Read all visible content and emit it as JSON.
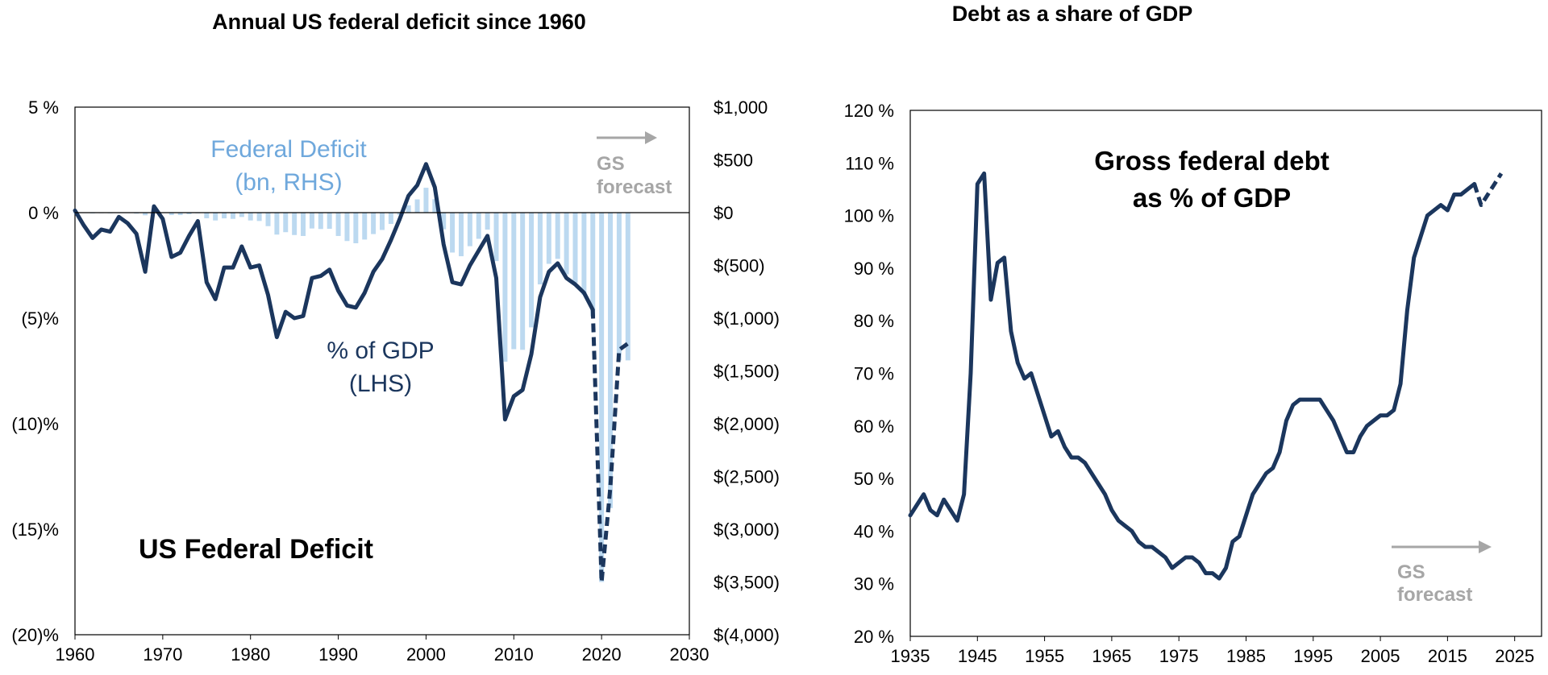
{
  "chart_data": [
    {
      "type": "line+bar",
      "title": "Annual US federal deficit since 1960",
      "inner_title": "US Federal Deficit",
      "xlim": [
        1960,
        2030
      ],
      "x_ticks": [
        "1960",
        "1970",
        "1980",
        "1990",
        "2000",
        "2010",
        "2020",
        "2030"
      ],
      "y_left_lim": [
        -20,
        5
      ],
      "y_left_ticks": [
        {
          "v": 5,
          "label": "5 %"
        },
        {
          "v": 0,
          "label": "0 %"
        },
        {
          "v": -5,
          "label": "(5)%"
        },
        {
          "v": -10,
          "label": "(10)%"
        },
        {
          "v": -15,
          "label": "(15)%"
        },
        {
          "v": -20,
          "label": "(20)%"
        }
      ],
      "y_right_lim": [
        -4000,
        1000
      ],
      "y_right_ticks": [
        {
          "v": 1000,
          "label": "$1,000"
        },
        {
          "v": 500,
          "label": "$500"
        },
        {
          "v": 0,
          "label": "$0"
        },
        {
          "v": -500,
          "label": "$(500)"
        },
        {
          "v": -1000,
          "label": "$(1,000)"
        },
        {
          "v": -1500,
          "label": "$(1,500)"
        },
        {
          "v": -2000,
          "label": "$(2,000)"
        },
        {
          "v": -2500,
          "label": "$(2,500)"
        },
        {
          "v": -3000,
          "label": "$(3,000)"
        },
        {
          "v": -3500,
          "label": "$(3,500)"
        },
        {
          "v": -4000,
          "label": "$(4,000)"
        }
      ],
      "bar_series": {
        "name": "Federal Deficit (bn, RHS)",
        "label_lines": [
          "Federal Deficit",
          "(bn, RHS)"
        ],
        "color": "#bcd9f0",
        "x": [
          1960,
          1961,
          1962,
          1963,
          1964,
          1965,
          1966,
          1967,
          1968,
          1969,
          1970,
          1971,
          1972,
          1973,
          1974,
          1975,
          1976,
          1977,
          1978,
          1979,
          1980,
          1981,
          1982,
          1983,
          1984,
          1985,
          1986,
          1987,
          1988,
          1989,
          1990,
          1991,
          1992,
          1993,
          1994,
          1995,
          1996,
          1997,
          1998,
          1999,
          2000,
          2001,
          2002,
          2003,
          2004,
          2005,
          2006,
          2007,
          2008,
          2009,
          2010,
          2011,
          2012,
          2013,
          2014,
          2015,
          2016,
          2017,
          2018,
          2019,
          2020,
          2021,
          2022,
          2023
        ],
        "values": [
          0,
          -3,
          -7,
          -5,
          -6,
          -1,
          -4,
          -9,
          -25,
          3,
          -3,
          -23,
          -23,
          -15,
          -6,
          -53,
          -74,
          -54,
          -59,
          -41,
          -74,
          -79,
          -128,
          -208,
          -185,
          -212,
          -221,
          -150,
          -155,
          -153,
          -221,
          -269,
          -290,
          -255,
          -203,
          -164,
          -107,
          -22,
          69,
          126,
          236,
          128,
          -158,
          -378,
          -413,
          -318,
          -248,
          -161,
          -459,
          -1413,
          -1294,
          -1300,
          -1087,
          -680,
          -485,
          -438,
          -585,
          -665,
          -779,
          -984,
          -3500,
          -2800,
          -1400,
          -1400
        ]
      },
      "line_series": {
        "name": "% of GDP (LHS)",
        "label_lines": [
          "% of GDP",
          "(LHS)"
        ],
        "color": "#1b365d",
        "x": [
          1960,
          1961,
          1962,
          1963,
          1964,
          1965,
          1966,
          1967,
          1968,
          1969,
          1970,
          1971,
          1972,
          1973,
          1974,
          1975,
          1976,
          1977,
          1978,
          1979,
          1980,
          1981,
          1982,
          1983,
          1984,
          1985,
          1986,
          1987,
          1988,
          1989,
          1990,
          1991,
          1992,
          1993,
          1994,
          1995,
          1996,
          1997,
          1998,
          1999,
          2000,
          2001,
          2002,
          2003,
          2004,
          2005,
          2006,
          2007,
          2008,
          2009,
          2010,
          2011,
          2012,
          2013,
          2014,
          2015,
          2016,
          2017,
          2018,
          2019
        ],
        "values": [
          0.1,
          -0.6,
          -1.2,
          -0.8,
          -0.9,
          -0.2,
          -0.5,
          -1.0,
          -2.8,
          0.3,
          -0.3,
          -2.1,
          -1.9,
          -1.1,
          -0.4,
          -3.3,
          -4.1,
          -2.6,
          -2.6,
          -1.6,
          -2.6,
          -2.5,
          -3.9,
          -5.9,
          -4.7,
          -5.0,
          -4.9,
          -3.1,
          -3.0,
          -2.7,
          -3.7,
          -4.4,
          -4.5,
          -3.8,
          -2.8,
          -2.2,
          -1.3,
          -0.3,
          0.8,
          1.3,
          2.3,
          1.2,
          -1.5,
          -3.3,
          -3.4,
          -2.5,
          -1.8,
          -1.1,
          -3.1,
          -9.8,
          -8.7,
          -8.4,
          -6.7,
          -4.0,
          -2.8,
          -2.4,
          -3.1,
          -3.4,
          -3.8,
          -4.6
        ]
      },
      "forecast_series": {
        "x": [
          2019,
          2020,
          2021,
          2022,
          2023
        ],
        "values": [
          -4.6,
          -17.5,
          -13.0,
          -6.5,
          -6.2
        ]
      },
      "forecast_label_lines": [
        "GS",
        "forecast"
      ]
    },
    {
      "type": "line",
      "title": "Debt as a share of GDP",
      "inner_title_lines": [
        "Gross federal debt",
        "as % of GDP"
      ],
      "xlim": [
        1935,
        2029
      ],
      "x_ticks": [
        "1935",
        "1945",
        "1955",
        "1965",
        "1975",
        "1985",
        "1995",
        "2005",
        "2015",
        "2025"
      ],
      "ylim": [
        20,
        120
      ],
      "y_ticks": [
        "20 %",
        "30 %",
        "40 %",
        "50 %",
        "60 %",
        "70 %",
        "80 %",
        "90 %",
        "100 %",
        "110 %",
        "120 %"
      ],
      "series": {
        "name": "Gross federal debt as % of GDP",
        "color": "#1b365d",
        "x": [
          1935,
          1936,
          1937,
          1938,
          1939,
          1940,
          1941,
          1942,
          1943,
          1944,
          1945,
          1946,
          1947,
          1948,
          1949,
          1950,
          1951,
          1952,
          1953,
          1954,
          1955,
          1956,
          1957,
          1958,
          1959,
          1960,
          1961,
          1962,
          1963,
          1964,
          1965,
          1966,
          1967,
          1968,
          1969,
          1970,
          1971,
          1972,
          1973,
          1974,
          1975,
          1976,
          1977,
          1978,
          1979,
          1980,
          1981,
          1982,
          1983,
          1984,
          1985,
          1986,
          1987,
          1988,
          1989,
          1990,
          1991,
          1992,
          1993,
          1994,
          1995,
          1996,
          1997,
          1998,
          1999,
          2000,
          2001,
          2002,
          2003,
          2004,
          2005,
          2006,
          2007,
          2008,
          2009,
          2010,
          2011,
          2012,
          2013,
          2014,
          2015,
          2016,
          2017,
          2018,
          2019
        ],
        "values": [
          43,
          45,
          47,
          44,
          43,
          46,
          44,
          42,
          47,
          70,
          106,
          108,
          84,
          91,
          92,
          78,
          72,
          69,
          70,
          66,
          62,
          58,
          59,
          56,
          54,
          54,
          53,
          51,
          49,
          47,
          44,
          42,
          41,
          40,
          38,
          37,
          37,
          36,
          35,
          33,
          34,
          35,
          35,
          34,
          32,
          32,
          31,
          33,
          38,
          39,
          43,
          47,
          49,
          51,
          52,
          55,
          61,
          64,
          65,
          65,
          65,
          65,
          63,
          61,
          58,
          55,
          55,
          58,
          60,
          61,
          62,
          62,
          63,
          68,
          82,
          92,
          96,
          100,
          101,
          102,
          101,
          104,
          104,
          105,
          106
        ]
      },
      "forecast_series": {
        "x": [
          2019,
          2020,
          2021,
          2022,
          2023
        ],
        "values": [
          106,
          102,
          104,
          106,
          108
        ]
      },
      "forecast_label_lines": [
        "GS",
        "forecast"
      ]
    }
  ]
}
